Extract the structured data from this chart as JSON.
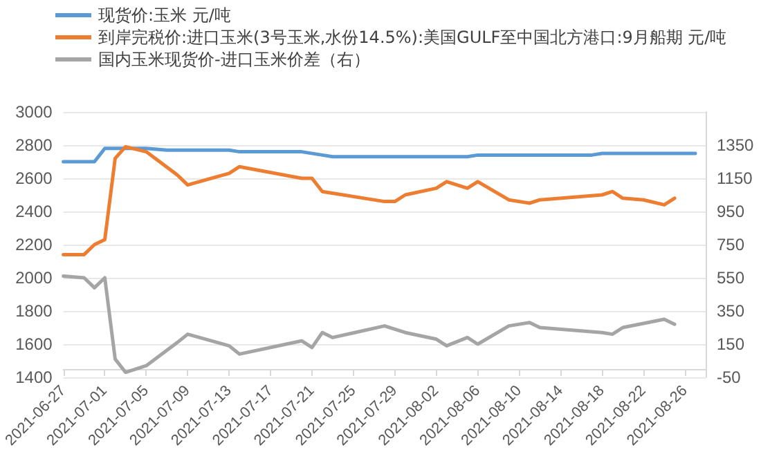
{
  "chart_data": {
    "type": "line",
    "series": [
      {
        "name": "现货价:玉米 元/吨",
        "color": "#5b9bd5",
        "x": [
          "2021-06-27",
          "2021-06-30",
          "2021-07-01",
          "2021-07-05",
          "2021-07-07",
          "2021-07-13",
          "2021-07-14",
          "2021-07-20",
          "2021-07-22",
          "2021-07-23",
          "2021-08-05",
          "2021-08-06",
          "2021-08-17",
          "2021-08-18",
          "2021-08-23",
          "2021-08-27"
        ],
        "values": [
          2700,
          2700,
          2780,
          2780,
          2770,
          2770,
          2760,
          2760,
          2740,
          2730,
          2730,
          2740,
          2740,
          2750,
          2750,
          2750
        ]
      },
      {
        "name": "到岸完税价:进口玉米(3号玉米,水份14.5%):美国GULF至中国北方港口:9月船期 元/吨",
        "color": "#ed7d31",
        "x": [
          "2021-06-27",
          "2021-06-29",
          "2021-06-30",
          "2021-07-01",
          "2021-07-02",
          "2021-07-03",
          "2021-07-05",
          "2021-07-08",
          "2021-07-09",
          "2021-07-13",
          "2021-07-14",
          "2021-07-20",
          "2021-07-21",
          "2021-07-22",
          "2021-07-28",
          "2021-07-29",
          "2021-07-30",
          "2021-08-02",
          "2021-08-03",
          "2021-08-05",
          "2021-08-06",
          "2021-08-09",
          "2021-08-11",
          "2021-08-12",
          "2021-08-18",
          "2021-08-19",
          "2021-08-20",
          "2021-08-22",
          "2021-08-24",
          "2021-08-25"
        ],
        "values": [
          2140,
          2140,
          2200,
          2230,
          2720,
          2790,
          2760,
          2620,
          2560,
          2630,
          2670,
          2600,
          2600,
          2520,
          2460,
          2460,
          2500,
          2540,
          2580,
          2540,
          2580,
          2470,
          2450,
          2470,
          2500,
          2520,
          2480,
          2470,
          2440,
          2480
        ]
      },
      {
        "name": "国内玉米现货价-进口玉米价差（右）",
        "color": "#a5a5a5",
        "axis": "y2",
        "x": [
          "2021-06-27",
          "2021-06-29",
          "2021-06-30",
          "2021-07-01",
          "2021-07-02",
          "2021-07-03",
          "2021-07-05",
          "2021-07-08",
          "2021-07-09",
          "2021-07-13",
          "2021-07-14",
          "2021-07-20",
          "2021-07-21",
          "2021-07-22",
          "2021-07-23",
          "2021-07-28",
          "2021-07-30",
          "2021-08-02",
          "2021-08-03",
          "2021-08-05",
          "2021-08-06",
          "2021-08-09",
          "2021-08-11",
          "2021-08-12",
          "2021-08-18",
          "2021-08-19",
          "2021-08-20",
          "2021-08-24",
          "2021-08-25"
        ],
        "values": [
          560,
          550,
          490,
          550,
          60,
          -20,
          20,
          160,
          210,
          140,
          90,
          170,
          130,
          220,
          190,
          260,
          220,
          180,
          140,
          190,
          150,
          260,
          280,
          250,
          220,
          210,
          250,
          300,
          270
        ]
      }
    ],
    "xlim": [
      "2021-06-27",
      "2021-08-28"
    ],
    "xticks": [
      "2021-06-27",
      "2021-07-01",
      "2021-07-05",
      "2021-07-09",
      "2021-07-13",
      "2021-07-17",
      "2021-07-21",
      "2021-07-25",
      "2021-07-29",
      "2021-08-02",
      "2021-08-06",
      "2021-08-10",
      "2021-08-14",
      "2021-08-18",
      "2021-08-22",
      "2021-08-26"
    ],
    "ylim": [
      1400,
      3000
    ],
    "yticks": [
      1400,
      1600,
      1800,
      2000,
      2200,
      2400,
      2600,
      2800,
      3000
    ],
    "y2lim": [
      -50,
      1550
    ],
    "y2ticks": [
      -50,
      150,
      350,
      550,
      750,
      950,
      1150,
      1350
    ],
    "grid": "y",
    "legend": "top left",
    "marker": "none",
    "line_style": "solid"
  }
}
